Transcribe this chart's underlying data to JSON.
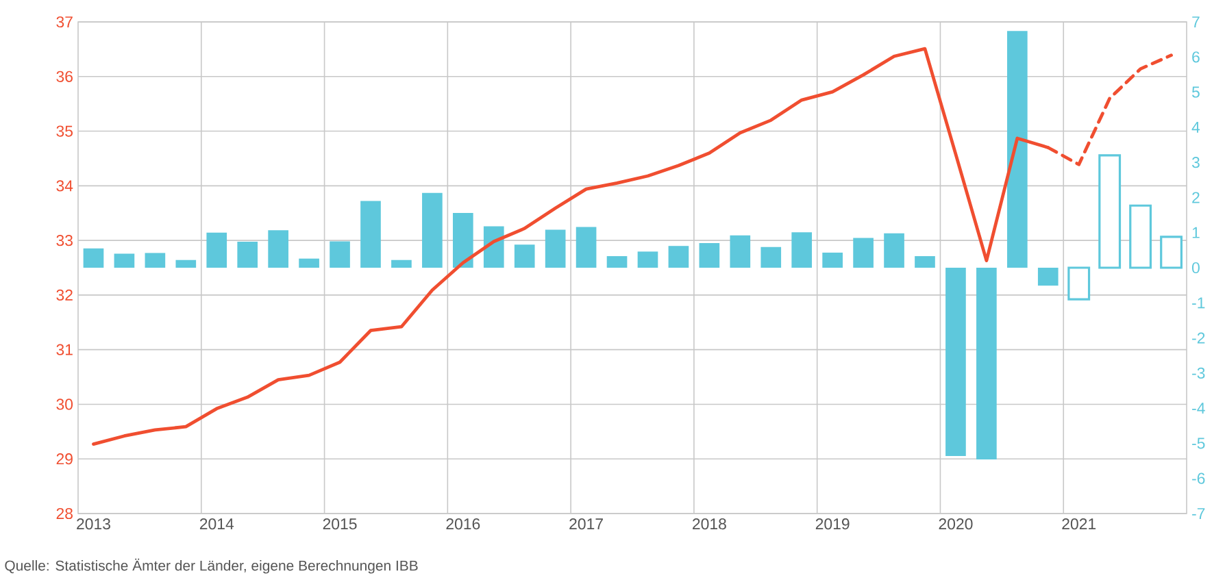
{
  "chart_data": {
    "type": "bar",
    "categories": [
      "2013",
      null,
      null,
      null,
      "2014",
      null,
      null,
      null,
      "2015",
      null,
      null,
      null,
      "2016",
      null,
      null,
      null,
      "2017",
      null,
      null,
      null,
      "2018",
      null,
      null,
      null,
      "2019",
      null,
      null,
      null,
      "2020",
      null,
      null,
      null,
      "2021",
      null,
      null,
      null
    ],
    "series": [
      {
        "axis": "y2",
        "color": "#5ec8dc",
        "values": [
          0.55,
          0.4,
          0.42,
          0.22,
          1.0,
          0.74,
          1.07,
          0.26,
          0.75,
          1.9,
          0.22,
          2.13,
          1.56,
          1.18,
          0.66,
          1.08,
          1.16,
          0.33,
          0.46,
          0.62,
          0.7,
          0.92,
          0.59,
          1.01,
          0.43,
          0.85,
          0.98,
          0.33,
          -5.36,
          -5.46,
          6.74,
          -0.51,
          null,
          null,
          null,
          null
        ]
      },
      {
        "axis": "y2",
        "color": "#5ec8dc",
        "line_style": "solid",
        "values": [
          null,
          null,
          null,
          null,
          null,
          null,
          null,
          null,
          null,
          null,
          null,
          null,
          null,
          null,
          null,
          null,
          null,
          null,
          null,
          null,
          null,
          null,
          null,
          null,
          null,
          null,
          null,
          null,
          null,
          null,
          null,
          null,
          -0.9,
          3.2,
          1.77,
          0.88
        ]
      },
      {
        "type": "line",
        "axis": "y",
        "color": "#f04e30",
        "line_style": "solid",
        "values": [
          29.27,
          29.42,
          29.53,
          29.59,
          29.92,
          30.13,
          30.45,
          30.53,
          30.77,
          31.35,
          31.42,
          32.09,
          32.59,
          32.98,
          33.22,
          33.59,
          33.94,
          34.05,
          34.18,
          34.37,
          34.6,
          34.97,
          35.2,
          35.57,
          35.72,
          36.03,
          36.37,
          36.51,
          34.58,
          32.63,
          34.87,
          34.7,
          null,
          null,
          null,
          null
        ]
      },
      {
        "type": "line",
        "axis": "y",
        "color": "#f04e30",
        "line_style": "dashed",
        "values": [
          null,
          null,
          null,
          null,
          null,
          null,
          null,
          null,
          null,
          null,
          null,
          null,
          null,
          null,
          null,
          null,
          null,
          null,
          null,
          null,
          null,
          null,
          null,
          null,
          null,
          null,
          null,
          null,
          null,
          null,
          null,
          34.7,
          34.39,
          35.6,
          36.14,
          36.39
        ]
      }
    ],
    "ylim": [
      28,
      37
    ],
    "yticks": [
      28,
      29,
      30,
      31,
      32,
      33,
      34,
      35,
      36,
      37
    ],
    "y2lim": [
      -7,
      7
    ],
    "y2ticks": [
      -7,
      -6,
      -5,
      -4,
      -3,
      -2,
      -1,
      0,
      1,
      2,
      3,
      4,
      5,
      6,
      7
    ],
    "grid": true,
    "annotations": [
      "Quelle: Statistische Ämter der Länder, eigene Berechnungen IBB"
    ]
  }
}
